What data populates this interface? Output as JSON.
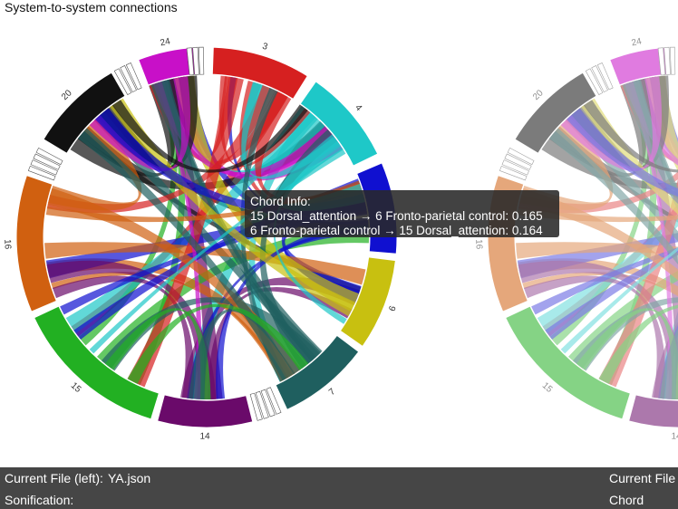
{
  "header": {
    "title": "System-to-system connections"
  },
  "left_chart": {
    "labels": [
      "3",
      "4",
      "6",
      "7",
      "14",
      "15",
      "16",
      "20",
      "24"
    ]
  },
  "right_chart": {
    "labels": [
      "24",
      "20",
      "16",
      "15",
      "14"
    ]
  },
  "tooltip": {
    "title": "Chord Info:",
    "lines": [
      "15 Dorsal_attention → 6 Fronto-parietal control: 0.165",
      "6 Fronto-parietal control → 15 Dorsal_attention: 0.164"
    ]
  },
  "footer": {
    "current_file_left_label": "Current File (left):",
    "current_file_left": "YA.json",
    "current_file_right_label": "Current File",
    "sonification_label": "Sonification:",
    "sonification_value": "Chord"
  }
}
